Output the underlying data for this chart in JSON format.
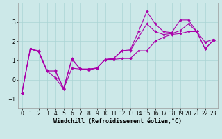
{
  "xlabel": "Windchill (Refroidissement éolien,°C)",
  "background_color": "#cce8e8",
  "line_color": "#aa00aa",
  "x": [
    0,
    1,
    2,
    3,
    4,
    5,
    6,
    7,
    8,
    9,
    10,
    11,
    12,
    13,
    14,
    15,
    16,
    17,
    18,
    19,
    20,
    21,
    22,
    23
  ],
  "y_bottom": [
    -0.7,
    1.6,
    1.45,
    0.45,
    0.1,
    -0.5,
    0.6,
    0.55,
    0.55,
    0.6,
    1.05,
    1.05,
    1.1,
    1.1,
    1.5,
    1.5,
    2.0,
    2.2,
    2.35,
    2.4,
    2.5,
    2.5,
    1.6,
    2.05
  ],
  "y_middle": [
    -0.7,
    1.6,
    1.45,
    0.45,
    0.45,
    -0.5,
    1.05,
    0.55,
    0.55,
    0.6,
    1.05,
    1.1,
    1.5,
    1.5,
    2.2,
    2.9,
    2.5,
    2.35,
    2.4,
    2.55,
    2.9,
    2.5,
    1.6,
    2.05
  ],
  "y_top": [
    -0.7,
    1.6,
    1.5,
    0.5,
    0.5,
    -0.45,
    1.1,
    0.55,
    0.5,
    0.6,
    1.05,
    1.1,
    1.5,
    1.55,
    2.5,
    3.55,
    2.9,
    2.5,
    2.45,
    3.1,
    3.1,
    2.5,
    1.95,
    2.1
  ],
  "ylim": [
    -1.5,
    4.0
  ],
  "yticks": [
    -1,
    0,
    1,
    2,
    3
  ],
  "xticks": [
    0,
    1,
    2,
    3,
    4,
    5,
    6,
    7,
    8,
    9,
    10,
    11,
    12,
    13,
    14,
    15,
    16,
    17,
    18,
    19,
    20,
    21,
    22,
    23
  ],
  "grid_color": "#aad4d4",
  "marker": "D",
  "markersize": 2.0,
  "linewidth": 0.8,
  "xlabel_fontsize": 6.0,
  "tick_fontsize": 5.5,
  "xlim": [
    -0.5,
    23.5
  ]
}
